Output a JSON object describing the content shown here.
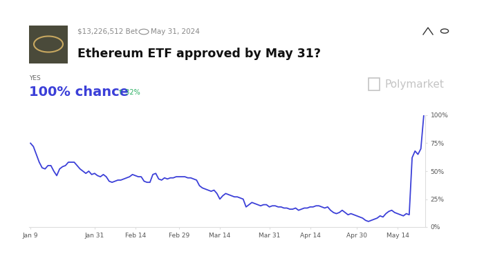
{
  "chart_data": {
    "type": "line",
    "title": "Ethereum ETF approved by May 31?",
    "annotations": [
      "$13,226,512 Bet",
      "May 31, 2024",
      "YES",
      "100% chance",
      "↑ 32%",
      "Polymarket"
    ],
    "color": "#3b3fd8",
    "categories": [
      "Jan 9",
      null,
      null,
      null,
      null,
      null,
      null,
      null,
      null,
      null,
      null,
      null,
      null,
      null,
      null,
      null,
      null,
      null,
      null,
      null,
      null,
      null,
      "Jan 31",
      null,
      null,
      null,
      null,
      null,
      null,
      null,
      null,
      null,
      null,
      null,
      null,
      null,
      "Feb 14",
      null,
      null,
      null,
      null,
      null,
      null,
      null,
      null,
      null,
      null,
      null,
      null,
      null,
      null,
      "Feb 29",
      null,
      null,
      null,
      null,
      null,
      null,
      null,
      null,
      null,
      null,
      null,
      null,
      null,
      "Mar 14",
      null,
      null,
      null,
      null,
      null,
      null,
      null,
      null,
      null,
      null,
      null,
      null,
      null,
      null,
      null,
      null,
      "Mar 31",
      null,
      null,
      null,
      null,
      null,
      null,
      null,
      null,
      null,
      null,
      null,
      null,
      null,
      "Apr 14",
      null,
      null,
      null,
      null,
      null,
      null,
      null,
      null,
      null,
      null,
      null,
      null,
      null,
      null,
      null,
      "Apr 30",
      null,
      null,
      null,
      null,
      null,
      null,
      null,
      null,
      null,
      null,
      null,
      null,
      null,
      "May 14",
      null,
      null,
      null,
      null,
      null,
      null,
      null,
      null,
      null
    ],
    "values": [
      75,
      72,
      65,
      58,
      53,
      52,
      55,
      55,
      50,
      46,
      52,
      54,
      55,
      58,
      58,
      58,
      55,
      52,
      50,
      48,
      50,
      47,
      48,
      46,
      45,
      47,
      45,
      41,
      40,
      41,
      42,
      42,
      43,
      44,
      45,
      47,
      46,
      45,
      45,
      41,
      40,
      40,
      47,
      48,
      43,
      42,
      44,
      43,
      44,
      44,
      45,
      45,
      45,
      45,
      44,
      44,
      43,
      42,
      37,
      35,
      34,
      33,
      32,
      33,
      30,
      25,
      28,
      30,
      29,
      28,
      27,
      27,
      26,
      25,
      18,
      20,
      22,
      21,
      20,
      19,
      20,
      20,
      18,
      19,
      19,
      18,
      18,
      17,
      17,
      16,
      16,
      17,
      15,
      16,
      17,
      17,
      18,
      18,
      19,
      19,
      18,
      17,
      18,
      15,
      13,
      12,
      13,
      15,
      13,
      11,
      12,
      11,
      10,
      9,
      8,
      6,
      5,
      6,
      7,
      8,
      10,
      9,
      12,
      14,
      15,
      13,
      12,
      11,
      10,
      12,
      11,
      62,
      68,
      65,
      70,
      100
    ],
    "ylim": [
      0,
      100
    ],
    "yticks": [
      {
        "value": 0,
        "label": "0%"
      },
      {
        "value": 25,
        "label": "25%"
      },
      {
        "value": 50,
        "label": "50%"
      },
      {
        "value": 75,
        "label": "75%"
      },
      {
        "value": 100,
        "label": "100%"
      }
    ],
    "grid": false
  }
}
